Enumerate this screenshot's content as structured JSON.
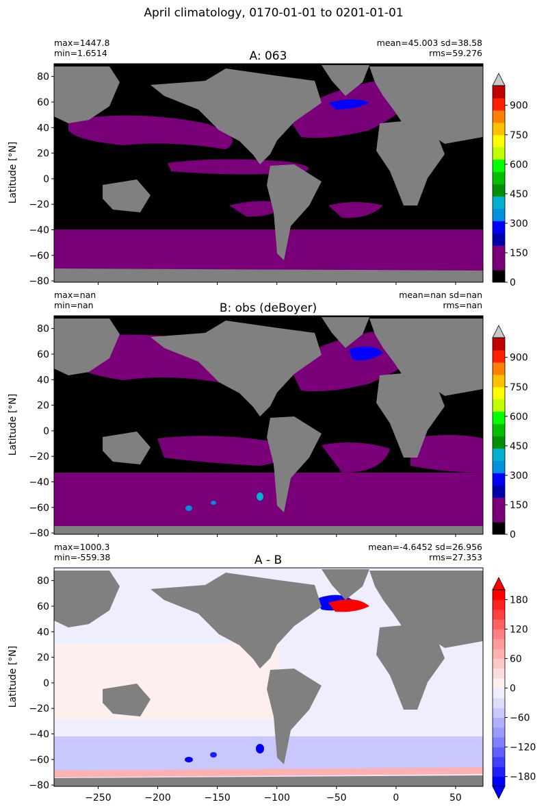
{
  "figure": {
    "title": "April climatology, 0170-01-01 to 0201-01-01",
    "shared_xlabel": ""
  },
  "chart_data": [
    {
      "type": "heatmap",
      "title": "A: 063",
      "stats_left": [
        "max=1447.8",
        "min=1.6514"
      ],
      "stats_right": [
        "mean=45.003 sd=38.58",
        "rms=59.276"
      ],
      "xlabel": "",
      "ylabel": "Latitude [°N]",
      "xlim": [
        -287,
        73
      ],
      "ylim": [
        -81,
        90
      ],
      "yticks": [
        80,
        60,
        40,
        20,
        0,
        -20,
        -40,
        -60,
        -80
      ],
      "xticks": [
        -250,
        -200,
        -150,
        -100,
        -50,
        0,
        50
      ],
      "show_xticklabels": false,
      "colorbar": {
        "ticks": [
          0,
          150,
          300,
          450,
          600,
          750,
          900
        ],
        "extend": "max",
        "colors": [
          "#000000",
          "#7a007a",
          "#7a007a",
          "#0000aa",
          "#0000ff",
          "#0090e0",
          "#00b0d0",
          "#009000",
          "#00c000",
          "#00ff00",
          "#c0ff00",
          "#ffff00",
          "#ffc000",
          "#ff8000",
          "#ff2000",
          "#c00000"
        ],
        "over_color": "#c8c8c8"
      },
      "land_color": "#808080"
    },
    {
      "type": "heatmap",
      "title": "B: obs (deBoyer)",
      "stats_left": [
        "max=nan",
        "min=nan"
      ],
      "stats_right": [
        "mean=nan sd=nan",
        "rms=nan"
      ],
      "xlabel": "",
      "ylabel": "Latitude [°N]",
      "xlim": [
        -287,
        73
      ],
      "ylim": [
        -81,
        90
      ],
      "yticks": [
        80,
        60,
        40,
        20,
        0,
        -20,
        -40,
        -60,
        -80
      ],
      "xticks": [
        -250,
        -200,
        -150,
        -100,
        -50,
        0,
        50
      ],
      "show_xticklabels": false,
      "colorbar": {
        "ticks": [
          0,
          150,
          300,
          450,
          600,
          750,
          900
        ],
        "extend": "max",
        "colors": [
          "#000000",
          "#7a007a",
          "#7a007a",
          "#0000aa",
          "#0000ff",
          "#0090e0",
          "#00b0d0",
          "#009000",
          "#00c000",
          "#00ff00",
          "#c0ff00",
          "#ffff00",
          "#ffc000",
          "#ff8000",
          "#ff2000",
          "#c00000"
        ],
        "over_color": "#c8c8c8"
      },
      "land_color": "#808080"
    },
    {
      "type": "heatmap",
      "title": "A - B",
      "stats_left": [
        "max=1000.3",
        "min=-559.38"
      ],
      "stats_right": [
        "mean=-4.6452 sd=26.956",
        "rms=27.353"
      ],
      "xlabel": "",
      "ylabel": "Latitude [°N]",
      "xlim": [
        -287,
        73
      ],
      "ylim": [
        -81,
        90
      ],
      "yticks": [
        80,
        60,
        40,
        20,
        0,
        -20,
        -40,
        -60,
        -80
      ],
      "xticks": [
        -250,
        -200,
        -150,
        -100,
        -50,
        0,
        50
      ],
      "show_xticklabels": true,
      "colorbar": {
        "ticks": [
          -180,
          -120,
          -60,
          0,
          60,
          120,
          180
        ],
        "range": [
          -200,
          200
        ],
        "extend": "both",
        "colors": [
          "#0000ff",
          "#2020ff",
          "#4040ff",
          "#6060ff",
          "#8080ff",
          "#9a9aff",
          "#b0b0ff",
          "#c8c8ff",
          "#dcdcff",
          "#eeeeff",
          "#ffeeee",
          "#ffdcdc",
          "#ffc8c8",
          "#ffb0b0",
          "#ff9a9a",
          "#ff8080",
          "#ff6060",
          "#ff4040",
          "#ff2020",
          "#ff0000"
        ],
        "under_color": "#0000ff",
        "over_color": "#ff0000"
      },
      "land_color": "#808080"
    }
  ]
}
